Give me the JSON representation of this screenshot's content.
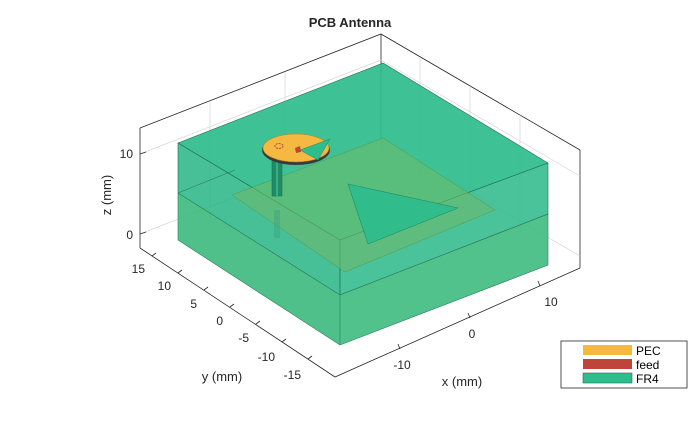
{
  "figure": {
    "title": "PCB Antenna",
    "xlabel": "x (mm)",
    "ylabel": "y (mm)",
    "zlabel": "z (mm)"
  },
  "axes": {
    "x_ticks": [
      "-10",
      "0",
      "10"
    ],
    "y_ticks": [
      "15",
      "10",
      "5",
      "0",
      "-5",
      "-10",
      "-15"
    ],
    "z_ticks": [
      "10",
      "0"
    ]
  },
  "legend": {
    "placement": "bottom-right",
    "items": [
      {
        "label": "PEC",
        "color": "#f5b942"
      },
      {
        "label": "feed",
        "color": "#c0443a"
      },
      {
        "label": "FR4",
        "color": "#2ebd8c"
      }
    ]
  },
  "colors": {
    "fr4": "#2ebd8c",
    "pec": "#f5b942",
    "feed": "#c0443a",
    "ground_plane": "#6db96a"
  }
}
